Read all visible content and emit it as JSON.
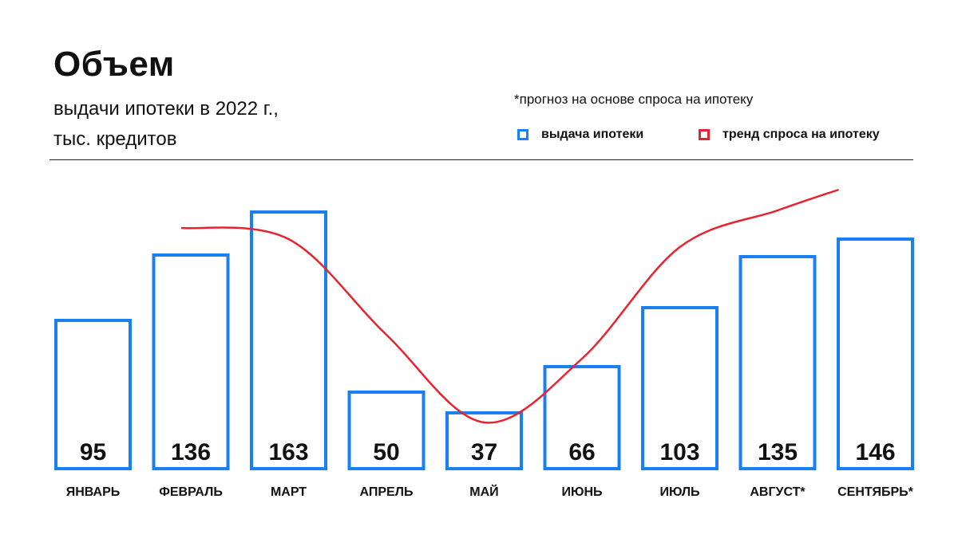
{
  "header": {
    "title": "Объем",
    "subtitle_line1": "выдачи ипотеки в 2022 г.,",
    "subtitle_line2": "тыс. кредитов",
    "note": "*прогноз на основе спроса на ипотеку"
  },
  "legend": [
    {
      "label": "выдача ипотеки",
      "color": "#1a7ff0"
    },
    {
      "label": "тренд спроса на ипотеку",
      "color": "#e8232f"
    }
  ],
  "chart_data": {
    "type": "bar",
    "categories": [
      "ЯНВАРЬ",
      "ФЕВРАЛЬ",
      "МАРТ",
      "АПРЕЛЬ",
      "МАЙ",
      "ИЮНЬ",
      "ИЮЛЬ",
      "АВГУСТ*",
      "СЕНТЯБРЬ*"
    ],
    "series": [
      {
        "name": "выдача ипотеки",
        "type": "bar",
        "values": [
          95,
          136,
          163,
          50,
          37,
          66,
          103,
          135,
          146
        ],
        "color": "#1a7ff0"
      },
      {
        "name": "тренд спроса на ипотеку",
        "type": "line",
        "values": [
          null,
          152,
          145,
          85,
          30,
          70,
          140,
          163,
          176
        ],
        "color": "#e8232f"
      }
    ],
    "title": "Объем",
    "subtitle": "выдачи ипотеки в 2022 г., тыс. кредитов",
    "ylim": [
      0,
      175
    ],
    "grid": false,
    "legend_position": "top-right",
    "data_labels": true
  }
}
